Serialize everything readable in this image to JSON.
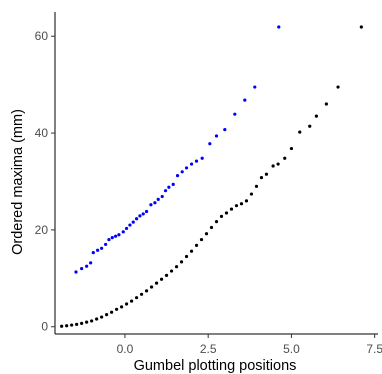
{
  "chart_data": {
    "type": "scatter",
    "xlabel": "Gumbel plotting positions",
    "ylabel": "Ordered maxima (mm)",
    "x_ticks": [
      0.0,
      2.5,
      5.0,
      7.5
    ],
    "x_tick_labels": [
      "0.0",
      "2.5",
      "5.0",
      "7.5"
    ],
    "y_ticks": [
      0,
      20,
      40,
      60
    ],
    "y_tick_labels": [
      "0",
      "20",
      "40",
      "60"
    ],
    "xlim": [
      -2.1,
      7.6
    ],
    "ylim": [
      -1.5,
      65
    ],
    "grid": false,
    "legend": "none",
    "series": [
      {
        "color": "#0000ff",
        "points": [
          [
            -1.47,
            11.3
          ],
          [
            -1.3,
            12.0
          ],
          [
            -1.15,
            12.5
          ],
          [
            -1.03,
            13.2
          ],
          [
            -0.95,
            15.3
          ],
          [
            -0.82,
            15.8
          ],
          [
            -0.7,
            16.2
          ],
          [
            -0.58,
            17.0
          ],
          [
            -0.48,
            18.0
          ],
          [
            -0.38,
            18.4
          ],
          [
            -0.28,
            18.7
          ],
          [
            -0.18,
            19.0
          ],
          [
            -0.05,
            19.6
          ],
          [
            0.05,
            20.3
          ],
          [
            0.15,
            21.0
          ],
          [
            0.25,
            21.6
          ],
          [
            0.35,
            22.3
          ],
          [
            0.45,
            22.9
          ],
          [
            0.55,
            23.3
          ],
          [
            0.65,
            23.8
          ],
          [
            0.78,
            25.2
          ],
          [
            0.9,
            25.6
          ],
          [
            1.0,
            26.3
          ],
          [
            1.12,
            26.9
          ],
          [
            1.22,
            28.1
          ],
          [
            1.32,
            28.8
          ],
          [
            1.45,
            29.4
          ],
          [
            1.58,
            31.2
          ],
          [
            1.72,
            32.0
          ],
          [
            1.85,
            32.8
          ],
          [
            2.0,
            33.6
          ],
          [
            2.15,
            34.2
          ],
          [
            2.32,
            34.8
          ],
          [
            2.55,
            37.8
          ],
          [
            2.75,
            39.4
          ],
          [
            3.0,
            40.7
          ],
          [
            3.3,
            43.9
          ],
          [
            3.6,
            46.8
          ],
          [
            3.9,
            49.5
          ],
          [
            4.62,
            61.9
          ]
        ]
      },
      {
        "color": "#000000",
        "points": [
          [
            -1.9,
            0.1
          ],
          [
            -1.75,
            0.2
          ],
          [
            -1.6,
            0.35
          ],
          [
            -1.45,
            0.5
          ],
          [
            -1.3,
            0.7
          ],
          [
            -1.15,
            0.95
          ],
          [
            -1.0,
            1.2
          ],
          [
            -0.85,
            1.6
          ],
          [
            -0.7,
            2.0
          ],
          [
            -0.55,
            2.5
          ],
          [
            -0.4,
            3.0
          ],
          [
            -0.25,
            3.6
          ],
          [
            -0.1,
            4.1
          ],
          [
            0.05,
            4.7
          ],
          [
            0.2,
            5.3
          ],
          [
            0.35,
            6.0
          ],
          [
            0.5,
            6.7
          ],
          [
            0.65,
            7.4
          ],
          [
            0.8,
            8.2
          ],
          [
            0.95,
            9.0
          ],
          [
            1.1,
            9.8
          ],
          [
            1.25,
            10.6
          ],
          [
            1.4,
            11.5
          ],
          [
            1.55,
            12.4
          ],
          [
            1.7,
            13.4
          ],
          [
            1.85,
            14.5
          ],
          [
            2.0,
            15.6
          ],
          [
            2.15,
            16.8
          ],
          [
            2.3,
            18.0
          ],
          [
            2.45,
            19.2
          ],
          [
            2.6,
            20.5
          ],
          [
            2.75,
            21.7
          ],
          [
            2.9,
            22.8
          ],
          [
            3.05,
            23.5
          ],
          [
            3.2,
            24.3
          ],
          [
            3.35,
            25.0
          ],
          [
            3.5,
            25.4
          ],
          [
            3.65,
            26.0
          ],
          [
            3.8,
            27.4
          ],
          [
            3.95,
            29.0
          ],
          [
            4.1,
            30.8
          ],
          [
            4.25,
            31.5
          ],
          [
            4.45,
            33.2
          ],
          [
            4.6,
            33.6
          ],
          [
            4.8,
            34.8
          ],
          [
            5.0,
            36.8
          ],
          [
            5.25,
            40.2
          ],
          [
            5.55,
            41.4
          ],
          [
            5.75,
            43.5
          ],
          [
            6.05,
            46.0
          ],
          [
            6.4,
            49.5
          ],
          [
            7.1,
            61.9
          ]
        ]
      }
    ]
  }
}
